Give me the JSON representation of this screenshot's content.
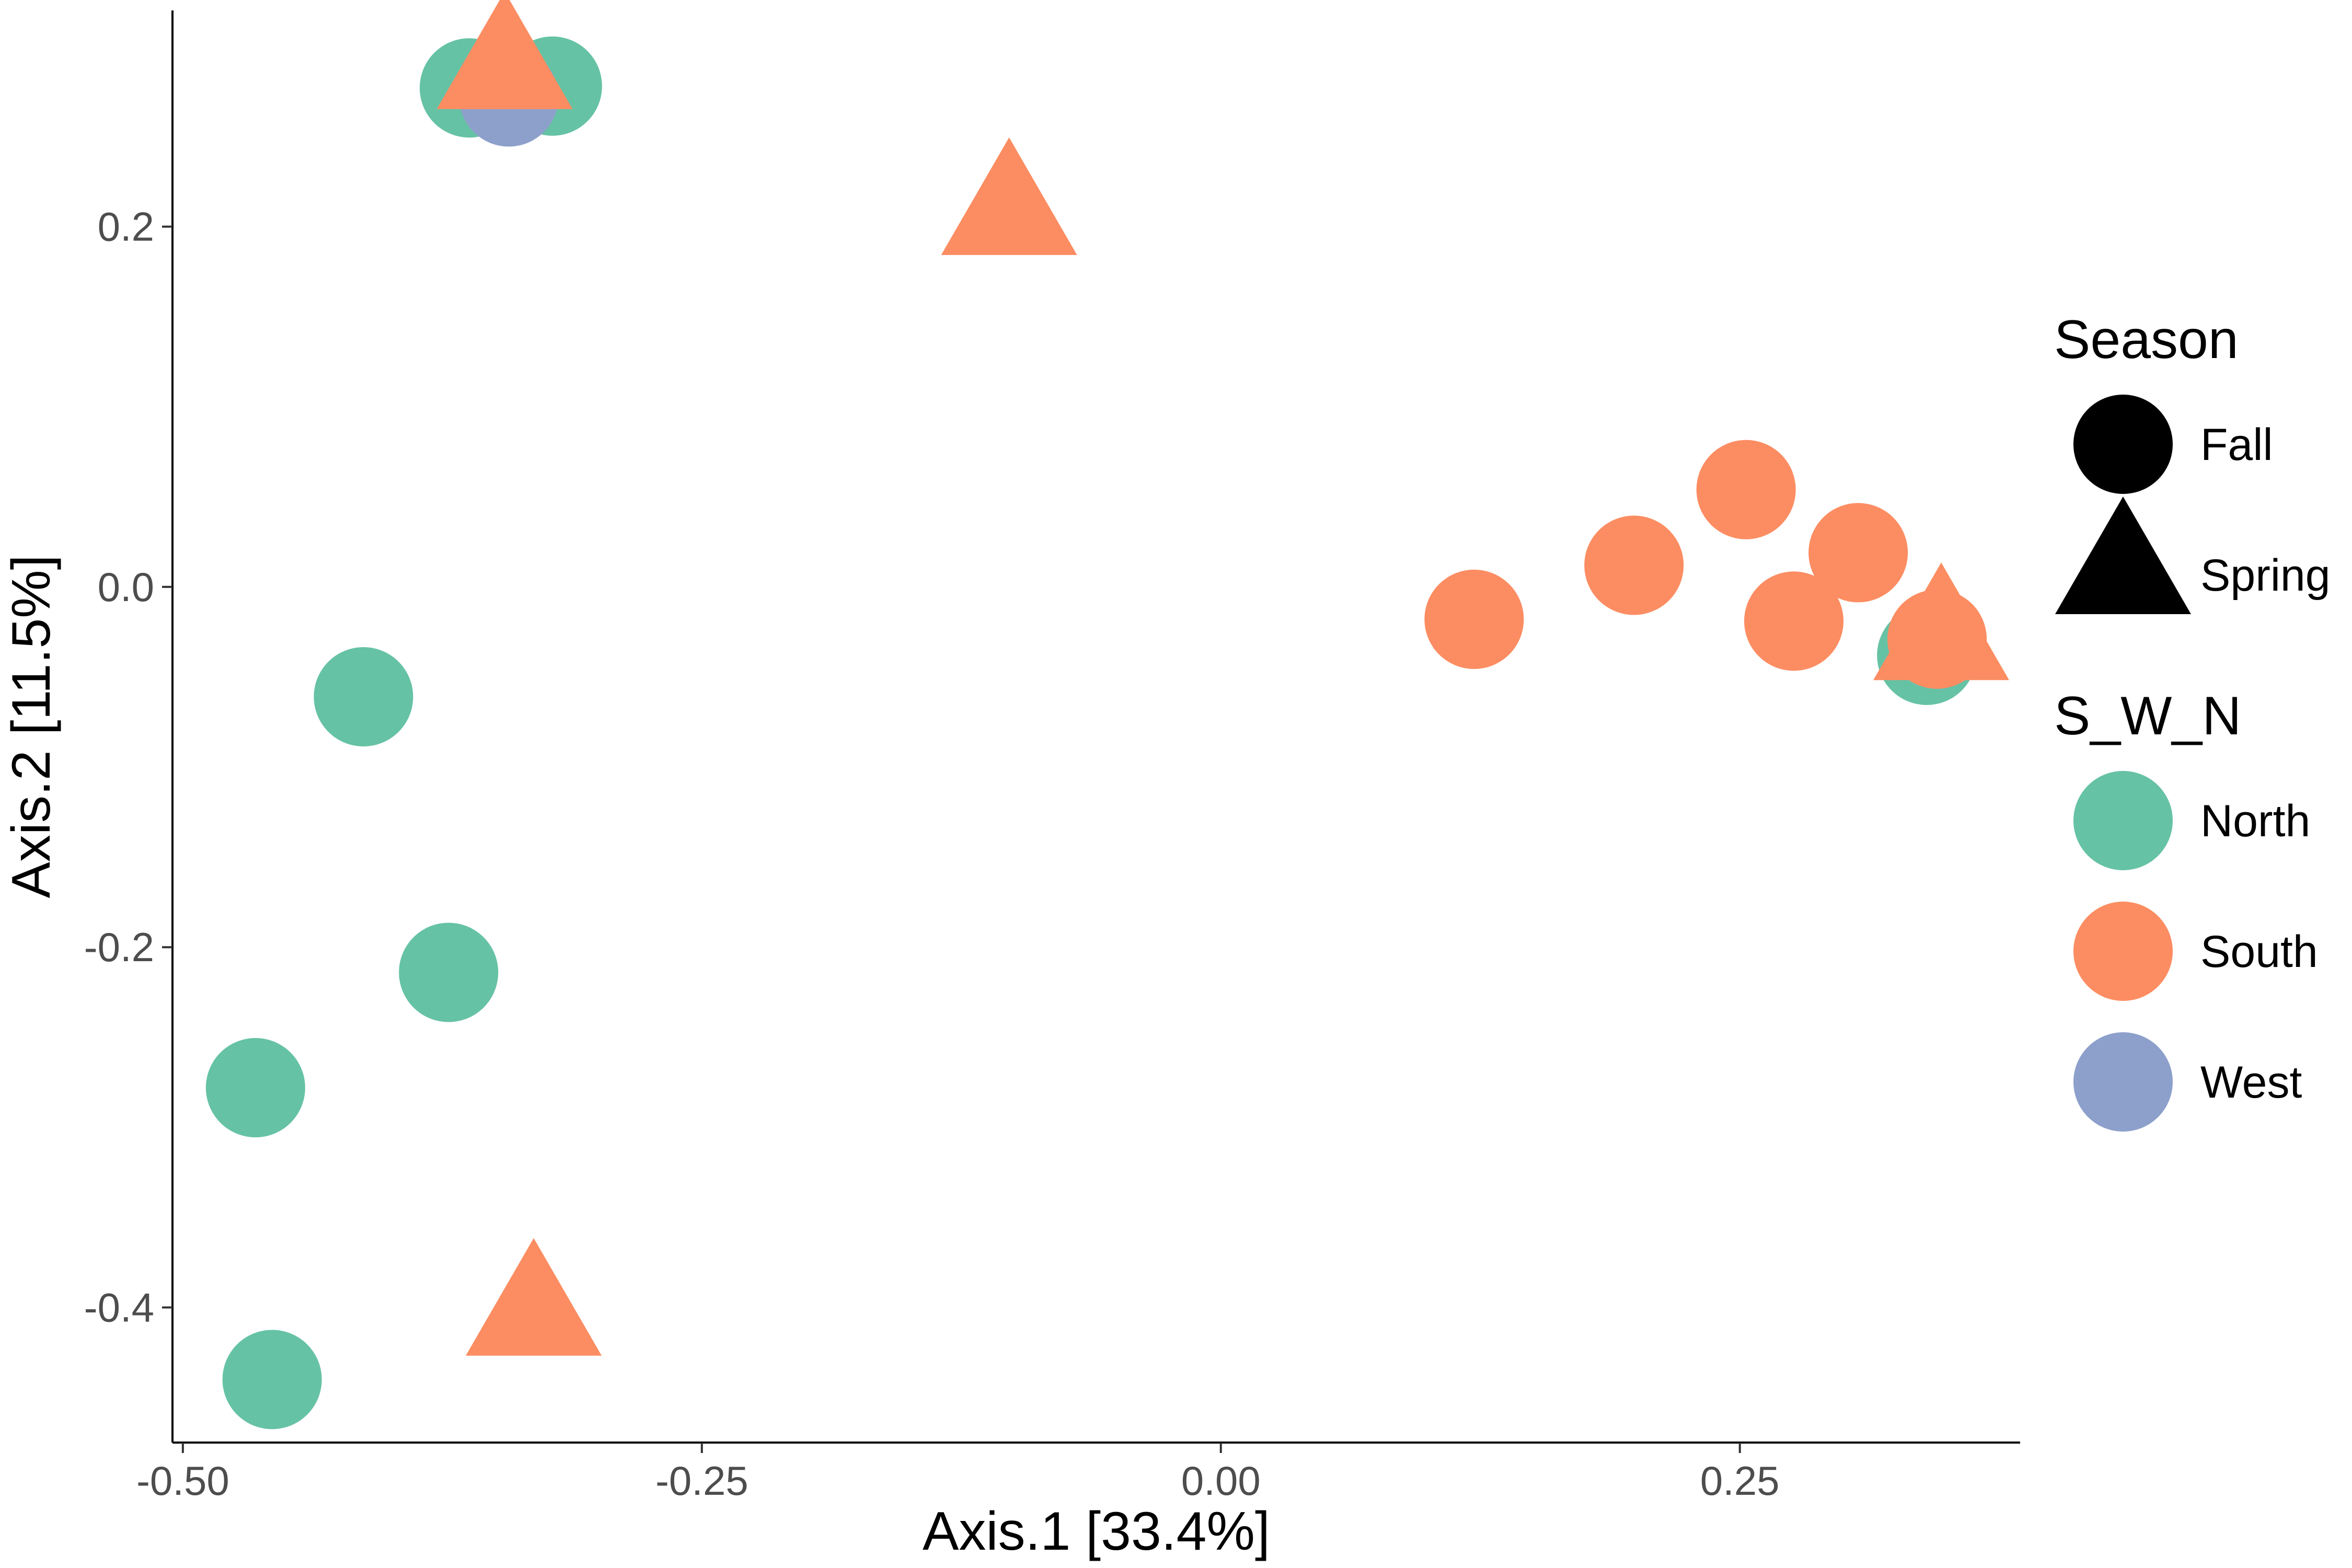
{
  "chart_data": {
    "type": "scatter",
    "title": "",
    "xlabel": "Axis.1   [33.4%]",
    "ylabel": "Axis.2   [11.5%]",
    "xlim": [
      -0.505,
      0.385
    ],
    "ylim": [
      -0.475,
      0.32
    ],
    "xticks": [
      -0.5,
      -0.25,
      0.0,
      0.25
    ],
    "xtick_labels": [
      "-0.50",
      "-0.25",
      "0.00",
      "0.25"
    ],
    "yticks": [
      -0.4,
      -0.2,
      0.0,
      0.2
    ],
    "ytick_labels": [
      "-0.4",
      "-0.2",
      "0.0",
      "0.2"
    ],
    "grid": false,
    "colors": {
      "North": "#66c2a5",
      "South": "#fc8d62",
      "West": "#8da0cb"
    },
    "legend": {
      "placement": "right",
      "shape_title": "Season",
      "shape_entries": [
        {
          "label": "Fall",
          "shape": "circle"
        },
        {
          "label": "Spring",
          "shape": "triangle"
        }
      ],
      "color_title": "S_W_N",
      "color_entries": [
        {
          "label": "North",
          "color": "#66c2a5"
        },
        {
          "label": "South",
          "color": "#fc8d62"
        },
        {
          "label": "West",
          "color": "#8da0cb"
        }
      ]
    },
    "points": [
      {
        "x": -0.362,
        "y": 0.277,
        "group": "North",
        "season": "Fall"
      },
      {
        "x": -0.322,
        "y": 0.278,
        "group": "North",
        "season": "Fall"
      },
      {
        "x": -0.343,
        "y": 0.272,
        "group": "West",
        "season": "Fall"
      },
      {
        "x": -0.413,
        "y": -0.061,
        "group": "North",
        "season": "Fall"
      },
      {
        "x": -0.372,
        "y": -0.214,
        "group": "North",
        "season": "Fall"
      },
      {
        "x": -0.465,
        "y": -0.278,
        "group": "North",
        "season": "Fall"
      },
      {
        "x": -0.457,
        "y": -0.44,
        "group": "North",
        "season": "Fall"
      },
      {
        "x": 0.34,
        "y": -0.038,
        "group": "North",
        "season": "Fall"
      },
      {
        "x": 0.122,
        "y": -0.018,
        "group": "South",
        "season": "Fall"
      },
      {
        "x": 0.199,
        "y": 0.012,
        "group": "South",
        "season": "Fall"
      },
      {
        "x": 0.253,
        "y": 0.054,
        "group": "South",
        "season": "Fall"
      },
      {
        "x": 0.276,
        "y": -0.019,
        "group": "South",
        "season": "Fall"
      },
      {
        "x": 0.307,
        "y": 0.019,
        "group": "South",
        "season": "Fall"
      },
      {
        "x": 0.345,
        "y": -0.029,
        "group": "South",
        "season": "Fall"
      },
      {
        "x": -0.345,
        "y": 0.287,
        "group": "South",
        "season": "Spring"
      },
      {
        "x": -0.102,
        "y": 0.206,
        "group": "South",
        "season": "Spring"
      },
      {
        "x": -0.331,
        "y": -0.405,
        "group": "South",
        "season": "Spring"
      },
      {
        "x": 0.347,
        "y": -0.03,
        "group": "South",
        "season": "Spring"
      }
    ]
  }
}
